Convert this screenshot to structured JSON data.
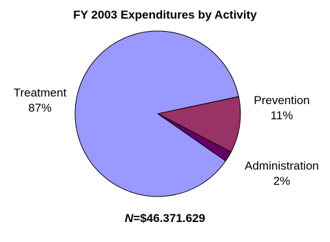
{
  "chart_data": {
    "type": "pie",
    "title": "FY 2003 Expenditures by Activity",
    "slices": [
      {
        "name": "Prevention",
        "value": 11,
        "label": "11%",
        "color": "#993366"
      },
      {
        "name": "Administration",
        "value": 2,
        "label": "2%",
        "color": "#660066"
      },
      {
        "name": "Treatment",
        "value": 87,
        "label": "87%",
        "color": "#9999ff"
      }
    ],
    "legend": "none",
    "start_angle_deg": 12,
    "direction": "clockwise"
  },
  "footnote": {
    "n_symbol": "N",
    "n_value": "=$46.371.629"
  }
}
